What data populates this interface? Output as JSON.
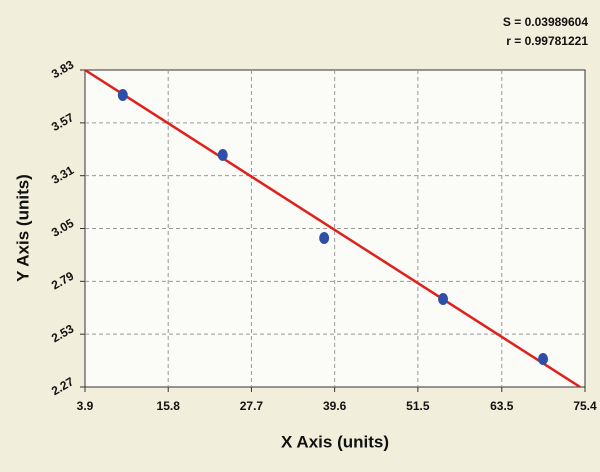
{
  "chart_data": {
    "type": "scatter",
    "annotations": [
      "S = 0.03989604",
      "r = 0.99781221"
    ],
    "x_label": "X Axis (units)",
    "y_label": "Y Axis (units)",
    "x": [
      9.3,
      23.6,
      38.1,
      55.1,
      69.4
    ],
    "values": [
      3.707,
      3.412,
      3.003,
      2.703,
      2.408
    ],
    "color": "#2f4fa6",
    "fit_line": {
      "x": [
        3.9,
        74.7
      ],
      "y": [
        3.83,
        2.27
      ],
      "color": "#e0201b"
    },
    "xlim": [
      3.9,
      75.4
    ],
    "xticks": [
      3.9,
      15.8,
      27.7,
      39.6,
      51.5,
      63.5,
      75.4
    ],
    "ylim": [
      2.27,
      3.83
    ],
    "yticks": [
      2.27,
      2.53,
      2.79,
      3.05,
      3.31,
      3.57,
      3.83
    ],
    "grid": true
  }
}
